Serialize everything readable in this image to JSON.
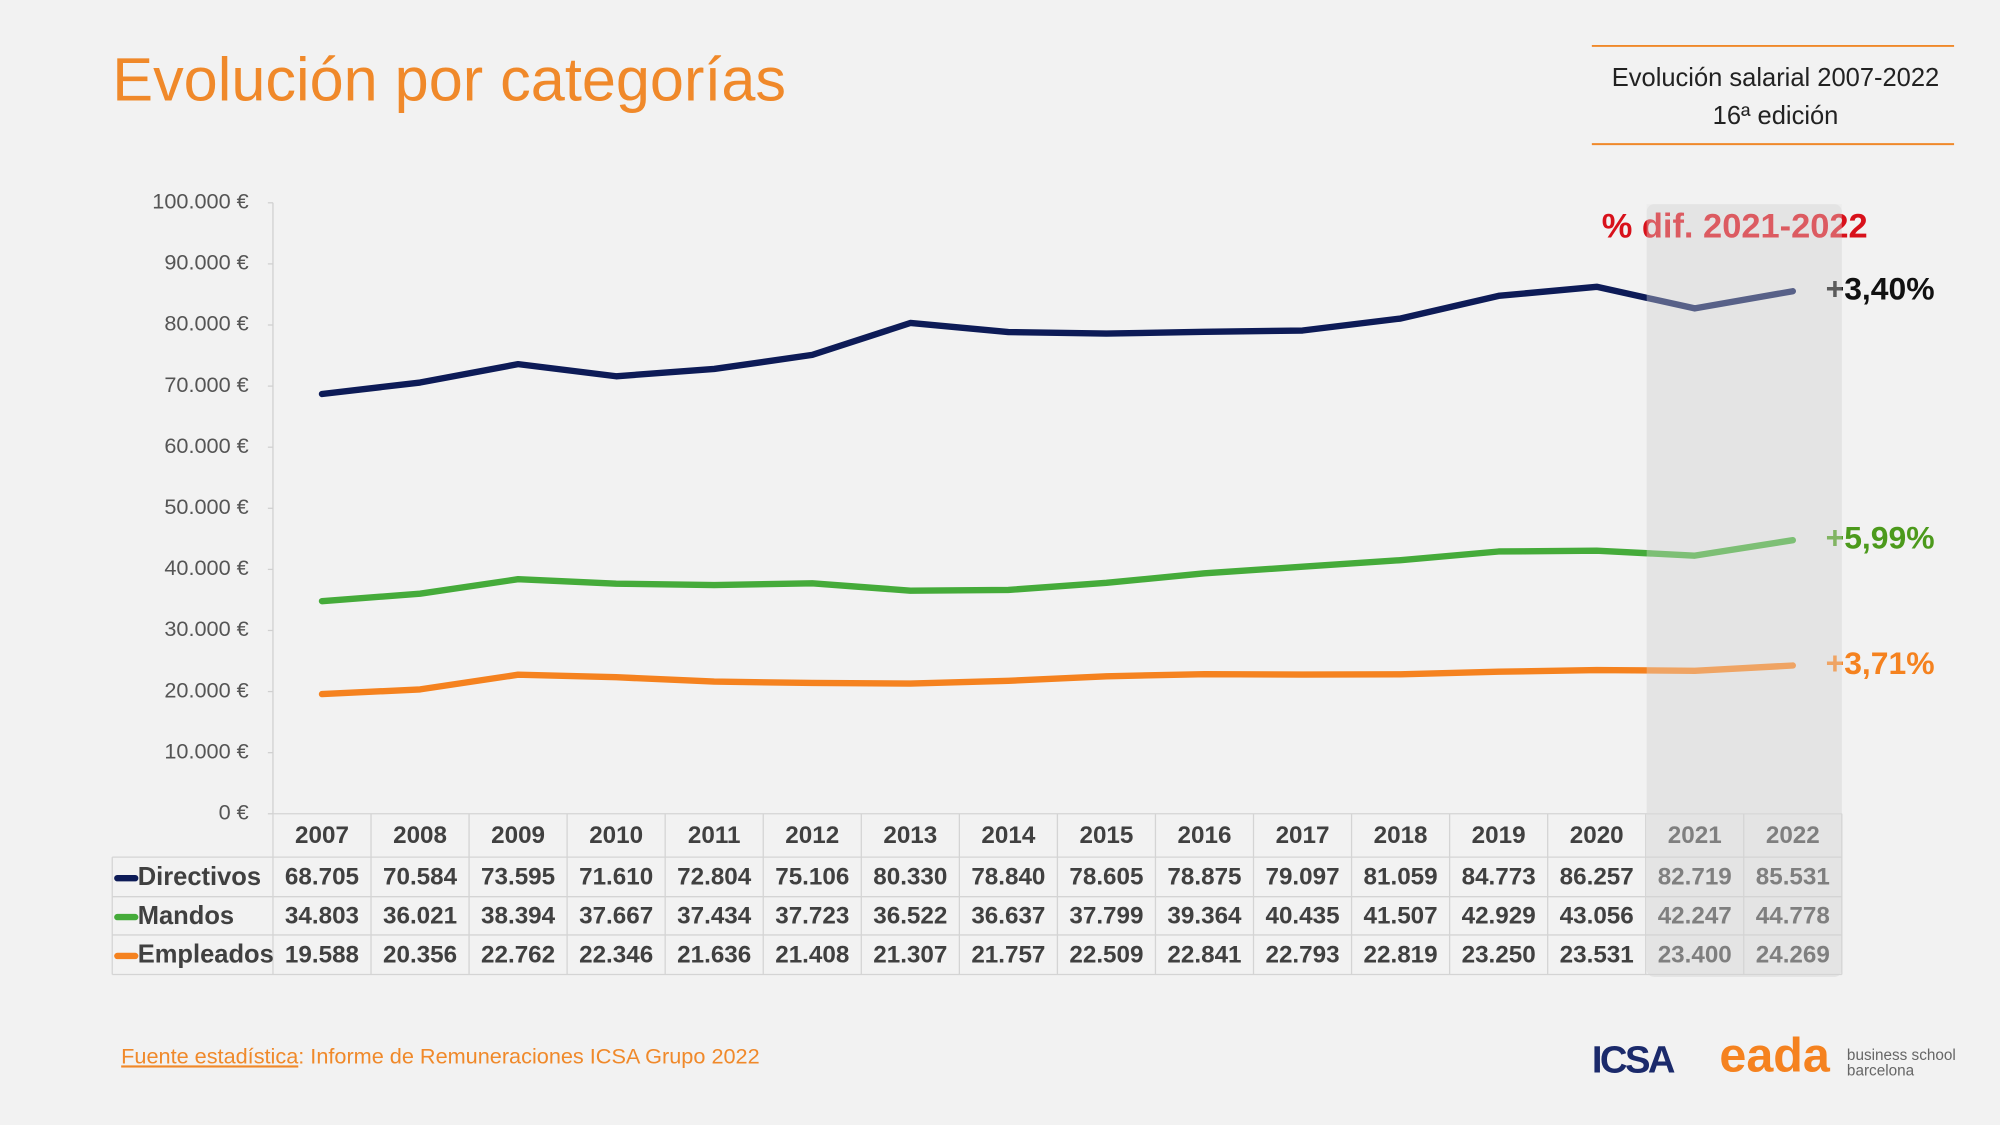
{
  "header": {
    "title": "Evolución por categorías",
    "edition_line1": "Evolución salarial 2007-2022",
    "edition_line2": "16ª edición"
  },
  "chart_data": {
    "type": "line",
    "categories": [
      "2007",
      "2008",
      "2009",
      "2010",
      "2011",
      "2012",
      "2013",
      "2014",
      "2015",
      "2016",
      "2017",
      "2018",
      "2019",
      "2020",
      "2021",
      "2022"
    ],
    "series": [
      {
        "name": "Directivos",
        "color": "#0d1b57",
        "end_label": "+3,40%",
        "end_label_color": "#111111",
        "values": [
          68705,
          70584,
          73595,
          71610,
          72804,
          75106,
          80330,
          78840,
          78605,
          78875,
          79097,
          81059,
          84773,
          86257,
          82719,
          85531
        ],
        "value_labels": [
          "68.705",
          "70.584",
          "73.595",
          "71.610",
          "72.804",
          "75.106",
          "80.330",
          "78.840",
          "78.605",
          "78.875",
          "79.097",
          "81.059",
          "84.773",
          "86.257",
          "82.719",
          "85.531"
        ]
      },
      {
        "name": "Mandos",
        "color": "#45ab3a",
        "end_label": "+5,99%",
        "end_label_color": "#4c9a1c",
        "values": [
          34803,
          36021,
          38394,
          37667,
          37434,
          37723,
          36522,
          36637,
          37799,
          39364,
          40435,
          41507,
          42929,
          43056,
          42247,
          44778
        ],
        "value_labels": [
          "34.803",
          "36.021",
          "38.394",
          "37.667",
          "37.434",
          "37.723",
          "36.522",
          "36.637",
          "37.799",
          "39.364",
          "40.435",
          "41.507",
          "42.929",
          "43.056",
          "42.247",
          "44.778"
        ]
      },
      {
        "name": "Empleados",
        "color": "#f5821f",
        "end_label": "+3,71%",
        "end_label_color": "#f5821f",
        "values": [
          19588,
          20356,
          22762,
          22346,
          21636,
          21408,
          21307,
          21757,
          22509,
          22841,
          22793,
          22819,
          23250,
          23531,
          23400,
          24269
        ],
        "value_labels": [
          "19.588",
          "20.356",
          "22.762",
          "22.346",
          "21.636",
          "21.408",
          "21.307",
          "21.757",
          "22.509",
          "22.841",
          "22.793",
          "22.819",
          "23.250",
          "23.531",
          "23.400",
          "24.269"
        ]
      }
    ],
    "ylim": [
      0,
      100000
    ],
    "yticks": [
      {
        "value": 0,
        "label": "0 €"
      },
      {
        "value": 10000,
        "label": "10.000 €"
      },
      {
        "value": 20000,
        "label": "20.000 €"
      },
      {
        "value": 30000,
        "label": "30.000 €"
      },
      {
        "value": 40000,
        "label": "40.000 €"
      },
      {
        "value": 50000,
        "label": "50.000 €"
      },
      {
        "value": 60000,
        "label": "60.000 €"
      },
      {
        "value": 70000,
        "label": "70.000 €"
      },
      {
        "value": 80000,
        "label": "80.000 €"
      },
      {
        "value": 90000,
        "label": "90.000 €"
      },
      {
        "value": 100000,
        "label": "100.000 €"
      }
    ],
    "grid": false,
    "annotations": [
      "% dif. 2021-2022"
    ]
  },
  "footer": {
    "source_label": "Fuente estadística",
    "source_text": ": Informe de Remuneraciones ICSA Grupo 2022"
  },
  "logos": {
    "icsa": "ICSA",
    "eada": "eada",
    "tagline1": "business school",
    "tagline2": "barcelona"
  }
}
